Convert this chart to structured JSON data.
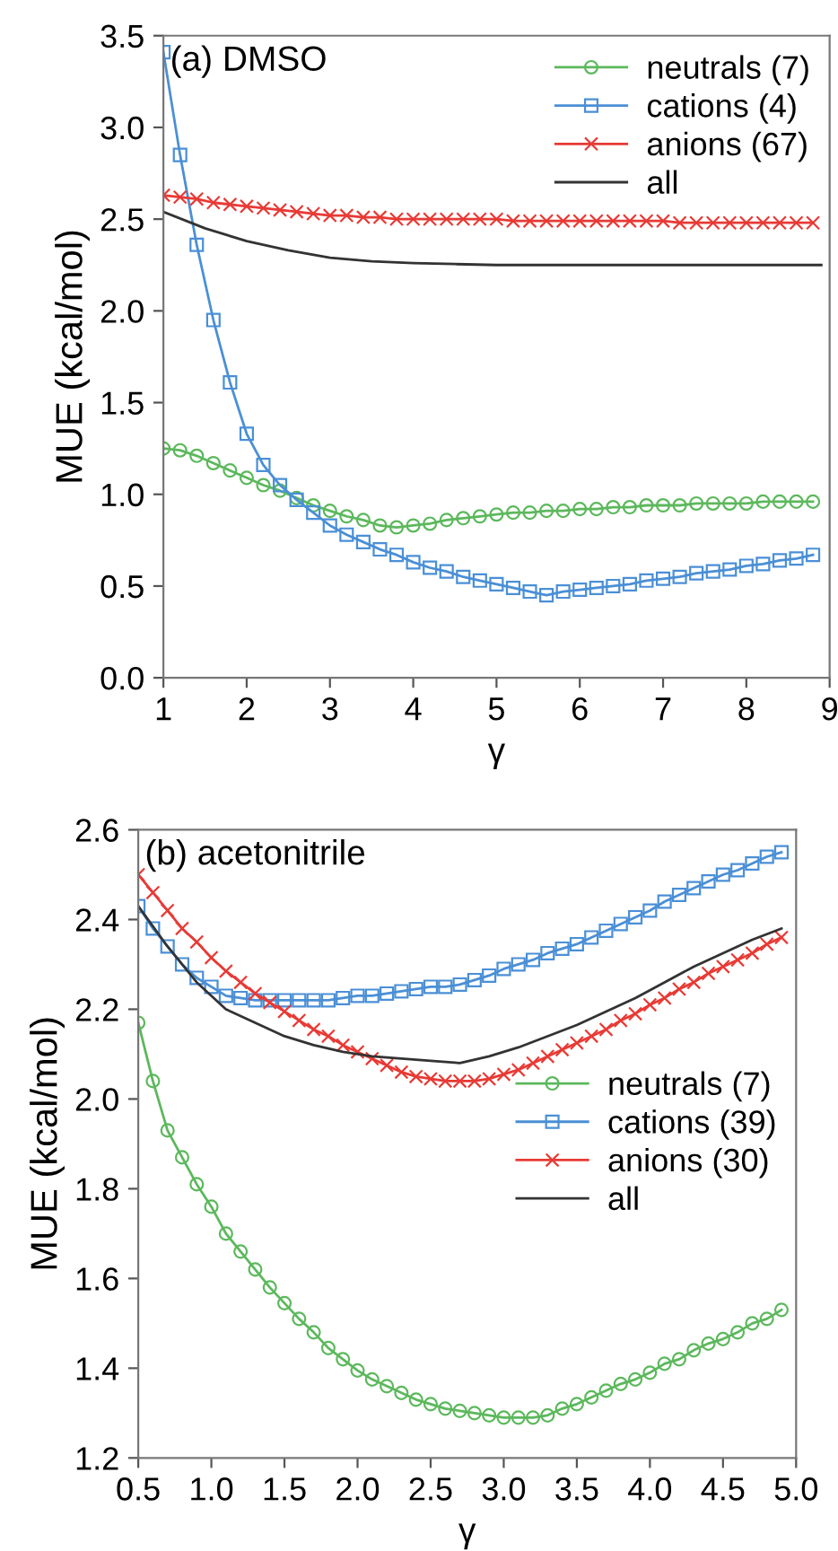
{
  "chart_data": [
    {
      "type": "line",
      "xlabel": "γ",
      "ylabel": "MUE (kcal/mol)",
      "annotations": [
        "(a) DMSO"
      ],
      "xlim": [
        1,
        9
      ],
      "xticks": [
        1,
        2,
        3,
        4,
        5,
        6,
        7,
        8,
        9
      ],
      "ylim": [
        0,
        3.5
      ],
      "yticks": [
        {
          "value": 0,
          "label": "0.0"
        },
        0.5,
        {
          "value": 1,
          "label": "1.0"
        },
        1.5,
        {
          "value": 2,
          "label": "2.0"
        },
        2.5,
        {
          "value": 3,
          "label": "3.0"
        },
        3.5
      ],
      "grid": false,
      "legend": "top right",
      "line_style": "solid",
      "series": [
        {
          "name": "neutrals (7)",
          "color": "#5cb85c",
          "marker": "circle",
          "x": [
            1.0,
            1.2,
            1.4,
            1.6,
            1.8,
            2.0,
            2.2,
            2.4,
            2.6,
            2.8,
            3.0,
            3.2,
            3.4,
            3.6,
            3.8,
            4.0,
            4.2,
            4.4,
            4.6,
            4.8,
            5.0,
            5.2,
            5.4,
            5.6,
            5.8,
            6.0,
            6.2,
            6.4,
            6.6,
            6.8,
            7.0,
            7.2,
            7.4,
            7.6,
            7.8,
            8.0,
            8.2,
            8.4,
            8.6,
            8.8
          ],
          "values": [
            1.25,
            1.24,
            1.21,
            1.17,
            1.13,
            1.09,
            1.05,
            1.02,
            0.98,
            0.94,
            0.91,
            0.88,
            0.86,
            0.83,
            0.82,
            0.83,
            0.84,
            0.86,
            0.87,
            0.88,
            0.89,
            0.9,
            0.9,
            0.91,
            0.91,
            0.92,
            0.92,
            0.93,
            0.93,
            0.94,
            0.94,
            0.94,
            0.95,
            0.95,
            0.95,
            0.95,
            0.96,
            0.96,
            0.96,
            0.96
          ]
        },
        {
          "name": "cations (4)",
          "color": "#4a8fd6",
          "marker": "square",
          "x": [
            1.0,
            1.2,
            1.4,
            1.6,
            1.8,
            2.0,
            2.2,
            2.4,
            2.6,
            2.8,
            3.0,
            3.2,
            3.4,
            3.6,
            3.8,
            4.0,
            4.2,
            4.4,
            4.6,
            4.8,
            5.0,
            5.2,
            5.4,
            5.6,
            5.8,
            6.0,
            6.2,
            6.4,
            6.6,
            6.8,
            7.0,
            7.2,
            7.4,
            7.6,
            7.8,
            8.0,
            8.2,
            8.4,
            8.6,
            8.8
          ],
          "values": [
            3.41,
            2.85,
            2.36,
            1.95,
            1.61,
            1.33,
            1.16,
            1.05,
            0.97,
            0.9,
            0.83,
            0.78,
            0.74,
            0.7,
            0.67,
            0.63,
            0.6,
            0.58,
            0.55,
            0.53,
            0.51,
            0.49,
            0.47,
            0.45,
            0.47,
            0.48,
            0.49,
            0.5,
            0.51,
            0.53,
            0.54,
            0.55,
            0.57,
            0.58,
            0.59,
            0.61,
            0.62,
            0.64,
            0.65,
            0.67
          ]
        },
        {
          "name": "anions (67)",
          "color": "#e83a35",
          "marker": "cross",
          "x": [
            1.0,
            1.2,
            1.4,
            1.6,
            1.8,
            2.0,
            2.2,
            2.4,
            2.6,
            2.8,
            3.0,
            3.2,
            3.4,
            3.6,
            3.8,
            4.0,
            4.2,
            4.4,
            4.6,
            4.8,
            5.0,
            5.2,
            5.4,
            5.6,
            5.8,
            6.0,
            6.2,
            6.4,
            6.6,
            6.8,
            7.0,
            7.2,
            7.4,
            7.6,
            7.8,
            8.0,
            8.2,
            8.4,
            8.6,
            8.8
          ],
          "values": [
            2.63,
            2.62,
            2.61,
            2.59,
            2.58,
            2.57,
            2.56,
            2.55,
            2.54,
            2.53,
            2.52,
            2.52,
            2.51,
            2.51,
            2.5,
            2.5,
            2.5,
            2.5,
            2.5,
            2.5,
            2.5,
            2.49,
            2.49,
            2.49,
            2.49,
            2.49,
            2.49,
            2.49,
            2.49,
            2.49,
            2.49,
            2.48,
            2.48,
            2.48,
            2.48,
            2.48,
            2.48,
            2.48,
            2.48,
            2.48
          ]
        },
        {
          "name": "all",
          "color": "#333333",
          "marker": "none",
          "x": [
            1.0,
            1.5,
            2.0,
            2.5,
            3.0,
            3.5,
            4.0,
            4.5,
            5.0,
            5.5,
            6.0,
            6.5,
            7.0,
            7.5,
            8.0,
            8.5,
            8.9
          ],
          "values": [
            2.54,
            2.45,
            2.38,
            2.33,
            2.29,
            2.27,
            2.26,
            2.255,
            2.25,
            2.25,
            2.25,
            2.25,
            2.25,
            2.25,
            2.25,
            2.25,
            2.25
          ]
        }
      ]
    },
    {
      "type": "line",
      "xlabel": "γ",
      "ylabel": "MUE (kcal/mol)",
      "annotations": [
        "(b) acetonitrile"
      ],
      "xlim": [
        0.5,
        5.0
      ],
      "xticks": [
        0.5,
        {
          "value": 1,
          "label": "1.0"
        },
        1.5,
        {
          "value": 2,
          "label": "2.0"
        },
        2.5,
        {
          "value": 3,
          "label": "3.0"
        },
        3.5,
        {
          "value": 4,
          "label": "4.0"
        },
        4.5,
        {
          "value": 5,
          "label": "5.0"
        }
      ],
      "ylim": [
        1.2,
        2.6
      ],
      "yticks": [
        1.2,
        1.4,
        1.6,
        1.8,
        {
          "value": 2,
          "label": "2.0"
        },
        2.2,
        2.4,
        2.6
      ],
      "grid": false,
      "legend": "right",
      "line_style": "solid",
      "series": [
        {
          "name": "neutrals (7)",
          "color": "#5cb85c",
          "marker": "circle",
          "x": [
            0.5,
            0.6,
            0.7,
            0.8,
            0.9,
            1.0,
            1.1,
            1.2,
            1.3,
            1.4,
            1.5,
            1.6,
            1.7,
            1.8,
            1.9,
            2.0,
            2.1,
            2.2,
            2.3,
            2.4,
            2.5,
            2.6,
            2.7,
            2.8,
            2.9,
            3.0,
            3.1,
            3.2,
            3.3,
            3.4,
            3.5,
            3.6,
            3.7,
            3.8,
            3.9,
            4.0,
            4.1,
            4.2,
            4.3,
            4.4,
            4.5,
            4.6,
            4.7,
            4.8,
            4.9
          ],
          "values": [
            2.17,
            2.04,
            1.93,
            1.87,
            1.81,
            1.76,
            1.7,
            1.66,
            1.62,
            1.58,
            1.545,
            1.51,
            1.48,
            1.445,
            1.42,
            1.395,
            1.375,
            1.36,
            1.345,
            1.33,
            1.32,
            1.31,
            1.305,
            1.3,
            1.295,
            1.29,
            1.29,
            1.29,
            1.295,
            1.31,
            1.32,
            1.335,
            1.35,
            1.365,
            1.375,
            1.39,
            1.41,
            1.42,
            1.44,
            1.455,
            1.465,
            1.48,
            1.5,
            1.51,
            1.53
          ]
        },
        {
          "name": "cations (39)",
          "color": "#4a8fd6",
          "marker": "square",
          "x": [
            0.5,
            0.6,
            0.7,
            0.8,
            0.9,
            1.0,
            1.1,
            1.2,
            1.3,
            1.4,
            1.5,
            1.6,
            1.7,
            1.8,
            1.9,
            2.0,
            2.1,
            2.2,
            2.3,
            2.4,
            2.5,
            2.6,
            2.7,
            2.8,
            2.9,
            3.0,
            3.1,
            3.2,
            3.3,
            3.4,
            3.5,
            3.6,
            3.7,
            3.8,
            3.9,
            4.0,
            4.1,
            4.2,
            4.3,
            4.4,
            4.5,
            4.6,
            4.7,
            4.8,
            4.9
          ],
          "values": [
            2.43,
            2.38,
            2.34,
            2.3,
            2.27,
            2.25,
            2.23,
            2.225,
            2.22,
            2.22,
            2.22,
            2.22,
            2.22,
            2.22,
            2.225,
            2.23,
            2.23,
            2.235,
            2.24,
            2.245,
            2.25,
            2.25,
            2.255,
            2.265,
            2.275,
            2.29,
            2.3,
            2.31,
            2.325,
            2.335,
            2.345,
            2.36,
            2.375,
            2.39,
            2.405,
            2.42,
            2.44,
            2.455,
            2.47,
            2.485,
            2.5,
            2.51,
            2.525,
            2.54,
            2.55
          ]
        },
        {
          "name": "anions (30)",
          "color": "#e83a35",
          "marker": "cross",
          "x": [
            0.5,
            0.6,
            0.7,
            0.8,
            0.9,
            1.0,
            1.1,
            1.2,
            1.3,
            1.4,
            1.5,
            1.6,
            1.7,
            1.8,
            1.9,
            2.0,
            2.1,
            2.2,
            2.3,
            2.4,
            2.5,
            2.6,
            2.7,
            2.8,
            2.9,
            3.0,
            3.1,
            3.2,
            3.3,
            3.4,
            3.5,
            3.6,
            3.7,
            3.8,
            3.9,
            4.0,
            4.1,
            4.2,
            4.3,
            4.4,
            4.5,
            4.6,
            4.7,
            4.8,
            4.9
          ],
          "values": [
            2.5,
            2.46,
            2.42,
            2.38,
            2.35,
            2.315,
            2.285,
            2.26,
            2.235,
            2.215,
            2.195,
            2.175,
            2.155,
            2.14,
            2.12,
            2.105,
            2.09,
            2.075,
            2.06,
            2.05,
            2.045,
            2.04,
            2.04,
            2.04,
            2.045,
            2.055,
            2.065,
            2.08,
            2.095,
            2.11,
            2.125,
            2.14,
            2.155,
            2.175,
            2.19,
            2.21,
            2.225,
            2.245,
            2.26,
            2.28,
            2.295,
            2.31,
            2.325,
            2.345,
            2.36
          ]
        },
        {
          "name": "all",
          "color": "#333333",
          "marker": "none",
          "x": [
            0.5,
            0.7,
            0.9,
            1.1,
            1.3,
            1.5,
            1.7,
            1.9,
            2.1,
            2.3,
            2.5,
            2.7,
            2.9,
            3.1,
            3.3,
            3.5,
            3.7,
            3.9,
            4.1,
            4.3,
            4.5,
            4.7,
            4.9
          ],
          "values": [
            2.43,
            2.34,
            2.26,
            2.2,
            2.17,
            2.14,
            2.12,
            2.105,
            2.095,
            2.09,
            2.085,
            2.08,
            2.095,
            2.115,
            2.14,
            2.165,
            2.195,
            2.225,
            2.26,
            2.295,
            2.325,
            2.355,
            2.38
          ]
        }
      ]
    }
  ]
}
